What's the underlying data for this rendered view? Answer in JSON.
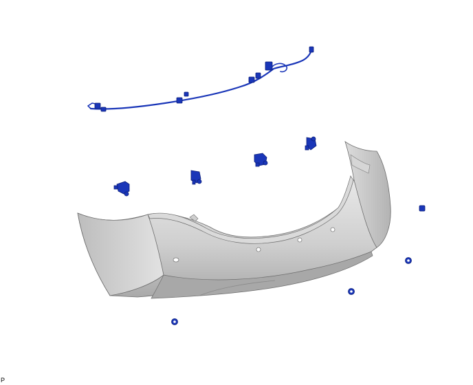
{
  "figure": {
    "label": "P"
  },
  "colors": {
    "background": "#ffffff",
    "part_blue": "#1a36b8",
    "part_blue_dark": "#0c1f7a",
    "bumper_light": "#e4e4e4",
    "bumper_mid": "#c6c6c6",
    "bumper_dark": "#9c9c9c",
    "outline": "#6c6c6c"
  },
  "parts": [
    {
      "name": "wire-harness",
      "icon": "wire-harness-icon"
    },
    {
      "name": "ultrasonic-sensor",
      "icon": "sensor-icon",
      "count": 4
    },
    {
      "name": "sensor-retainer",
      "icon": "retainer-icon",
      "count": 4
    },
    {
      "name": "rear-bumper-cover",
      "icon": "bumper-cover-icon"
    },
    {
      "name": "clip",
      "icon": "clip-icon",
      "count": 4
    }
  ]
}
